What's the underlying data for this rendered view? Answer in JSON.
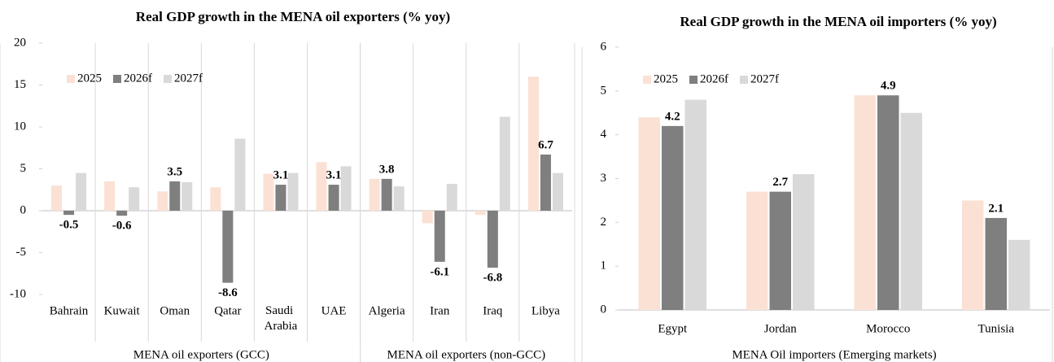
{
  "chart_data": [
    {
      "type": "bar",
      "title": "Real GDP growth in the MENA oil exporters (% yoy)",
      "groups": [
        {
          "name": "MENA oil exporters (GCC)",
          "categories": [
            "Bahrain",
            "Kuwait",
            "Oman",
            "Qatar",
            "Saudi Arabia",
            "UAE"
          ]
        },
        {
          "name": "MENA oil exporters (non-GCC)",
          "categories": [
            "Algeria",
            "Iran",
            "Iraq",
            "Libya"
          ]
        }
      ],
      "series": [
        {
          "name": "2025",
          "color": "#fbe1d4",
          "values": [
            3.0,
            3.5,
            2.3,
            2.8,
            4.4,
            5.8,
            3.8,
            -1.5,
            -0.5,
            16.0
          ]
        },
        {
          "name": "2026f",
          "color": "#7f7f7f",
          "data_labels": true,
          "values": [
            -0.5,
            -0.6,
            3.5,
            -8.6,
            3.1,
            3.1,
            3.8,
            -6.1,
            -6.8,
            6.7
          ]
        },
        {
          "name": "2027f",
          "color": "#d9d9d9",
          "values": [
            4.5,
            2.8,
            3.4,
            8.6,
            4.5,
            5.3,
            2.9,
            3.2,
            11.2,
            4.5
          ]
        }
      ],
      "ylim": [
        -10,
        20
      ],
      "yticks": [
        -10,
        -5,
        0,
        5,
        10,
        15,
        20
      ],
      "category_dividers": true,
      "legend": "top-left"
    },
    {
      "type": "bar",
      "title": "Real GDP growth in the MENA oil importers (% yoy)",
      "groups": [
        {
          "name": "MENA Oil importers (Emerging markets)",
          "categories": [
            "Egypt",
            "Jordan",
            "Morocco",
            "Tunisia"
          ]
        }
      ],
      "series": [
        {
          "name": "2025",
          "color": "#fbe1d4",
          "values": [
            4.4,
            2.7,
            4.9,
            2.5
          ]
        },
        {
          "name": "2026f",
          "color": "#7f7f7f",
          "data_labels": true,
          "values": [
            4.2,
            2.7,
            4.9,
            2.1
          ]
        },
        {
          "name": "2027f",
          "color": "#d9d9d9",
          "values": [
            4.8,
            3.1,
            4.5,
            1.6
          ]
        }
      ],
      "ylim": [
        0,
        6
      ],
      "yticks": [
        0,
        1,
        2,
        3,
        4,
        5,
        6
      ],
      "category_dividers": false,
      "legend": "top-left"
    }
  ]
}
